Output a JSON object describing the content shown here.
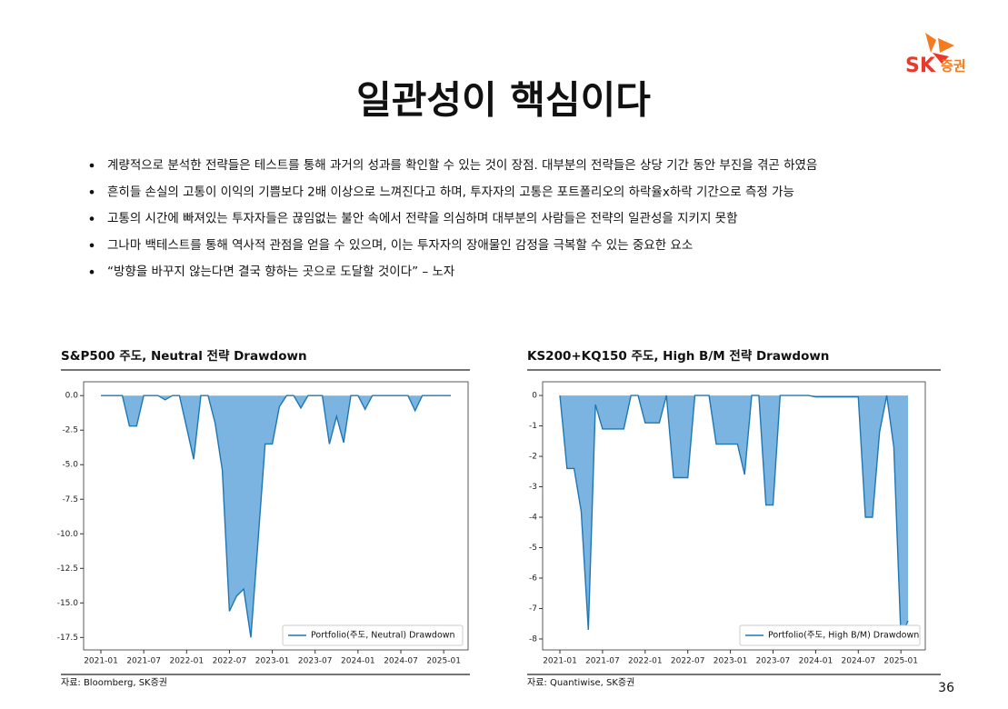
{
  "logo": {
    "brand": "SK",
    "name": "증권"
  },
  "header": {
    "title": "일관성이 핵심이다"
  },
  "bullets": [
    "계량적으로 분석한 전략들은 테스트를 통해 과거의 성과를 확인할 수 있는 것이 장점. 대부분의 전략들은 상당 기간 동안 부진을 겪곤 하였음",
    "흔히들 손실의 고통이 이익의 기쁨보다 2배 이상으로 느껴진다고 하며, 투자자의 고통은 포트폴리오의 하락율x하락 기간으로 측정 가능",
    "고통의 시간에 빠져있는 투자자들은 끊임없는 불안 속에서 전략을 의심하며 대부분의 사람들은 전략의 일관성을 지키지 못함",
    "그나마 백테스트를 통해 역사적 관점을 얻을 수 있으며, 이는 투자자의 장애물인 감정을 극복할 수 있는 중요한 요소",
    "“방향을 바꾸지 않는다면 결국 향하는 곳으로 도달할 것이다” – 노자"
  ],
  "page_number": "36",
  "chart_data": [
    {
      "type": "area",
      "title": "S&P500 주도, Neutral 전략 Drawdown",
      "source": "자료: Bloomberg, SK증권",
      "x": [
        "2021-01",
        "2021-02",
        "2021-03",
        "2021-04",
        "2021-05",
        "2021-06",
        "2021-07",
        "2021-08",
        "2021-09",
        "2021-10",
        "2021-11",
        "2021-12",
        "2022-01",
        "2022-02",
        "2022-03",
        "2022-04",
        "2022-05",
        "2022-06",
        "2022-07",
        "2022-08",
        "2022-09",
        "2022-10",
        "2022-11",
        "2022-12",
        "2023-01",
        "2023-02",
        "2023-03",
        "2023-04",
        "2023-05",
        "2023-06",
        "2023-07",
        "2023-08",
        "2023-09",
        "2023-10",
        "2023-11",
        "2023-12",
        "2024-01",
        "2024-02",
        "2024-03",
        "2024-04",
        "2024-05",
        "2024-06",
        "2024-07",
        "2024-08",
        "2024-09",
        "2024-10",
        "2024-11",
        "2024-12",
        "2025-01",
        "2025-02"
      ],
      "series": [
        {
          "name": "Portfolio(주도, Neutral) Drawdown",
          "color": "#1f77b4",
          "fill": "#7bb4e0",
          "values": [
            0,
            0,
            0,
            0,
            -2.2,
            -2.2,
            0,
            0,
            0,
            -0.3,
            0,
            0,
            -2.3,
            -4.6,
            0,
            0,
            -2.0,
            -5.4,
            -15.6,
            -14.5,
            -14.0,
            -17.5,
            -10.5,
            -3.5,
            -3.5,
            -0.8,
            0,
            0,
            -0.9,
            0,
            0,
            0,
            -3.5,
            -1.5,
            -3.4,
            0,
            0,
            -1.0,
            0,
            0,
            0,
            0,
            0,
            0,
            -1.1,
            0,
            0,
            0,
            0,
            0
          ]
        }
      ],
      "ylim": [
        1.0,
        -18.4
      ],
      "yticks": [
        {
          "value": 0,
          "label": "0.0"
        },
        -2.5,
        {
          "value": -5,
          "label": "-5.0"
        },
        -7.5,
        {
          "value": -10,
          "label": "-10.0"
        },
        -12.5,
        {
          "value": -15,
          "label": "-15.0"
        },
        -17.5
      ],
      "xticks": [
        "2021-01",
        "2021-07",
        "2022-01",
        "2022-07",
        "2023-01",
        "2023-07",
        "2024-01",
        "2024-07",
        "2025-01"
      ],
      "legend": "lower right"
    },
    {
      "type": "area",
      "title": "KS200+KQ150 주도, High B/M 전략 Drawdown",
      "source": "자료: Quantiwise, SK증권",
      "x": [
        "2021-01",
        "2021-02",
        "2021-03",
        "2021-04",
        "2021-05",
        "2021-06",
        "2021-07",
        "2021-08",
        "2021-09",
        "2021-10",
        "2021-11",
        "2021-12",
        "2022-01",
        "2022-02",
        "2022-03",
        "2022-04",
        "2022-05",
        "2022-06",
        "2022-07",
        "2022-08",
        "2022-09",
        "2022-10",
        "2022-11",
        "2022-12",
        "2023-01",
        "2023-02",
        "2023-03",
        "2023-04",
        "2023-05",
        "2023-06",
        "2023-07",
        "2023-08",
        "2023-09",
        "2023-10",
        "2023-11",
        "2023-12",
        "2024-01",
        "2024-02",
        "2024-03",
        "2024-04",
        "2024-05",
        "2024-06",
        "2024-07",
        "2024-08",
        "2024-09",
        "2024-10",
        "2024-11",
        "2024-12",
        "2025-01",
        "2025-02"
      ],
      "series": [
        {
          "name": "Portfolio(주도, High B/M) Drawdown",
          "color": "#1f77b4",
          "fill": "#7bb4e0",
          "values": [
            0,
            -2.4,
            -2.4,
            -3.8,
            -7.7,
            -0.3,
            -1.1,
            -1.1,
            -1.1,
            -1.1,
            0,
            0,
            -0.9,
            -0.9,
            -0.9,
            0,
            -2.7,
            -2.7,
            -2.7,
            0,
            0,
            0,
            -1.6,
            -1.6,
            -1.6,
            -1.6,
            -2.6,
            0,
            0,
            -3.6,
            -3.6,
            0,
            0,
            0,
            0,
            0,
            -0.05,
            -0.05,
            -0.05,
            -0.05,
            -0.05,
            -0.05,
            -0.05,
            -4.0,
            -4.0,
            -1.2,
            0,
            -1.7,
            -7.95,
            -7.4
          ]
        }
      ],
      "ylim": [
        0.45,
        -8.36
      ],
      "yticks": [
        0,
        -1,
        -2,
        -3,
        -4,
        -5,
        -6,
        -7,
        -8
      ],
      "xticks": [
        "2021-01",
        "2021-07",
        "2022-01",
        "2022-07",
        "2023-01",
        "2023-07",
        "2024-01",
        "2024-07",
        "2025-01"
      ],
      "legend": "lower right"
    }
  ]
}
